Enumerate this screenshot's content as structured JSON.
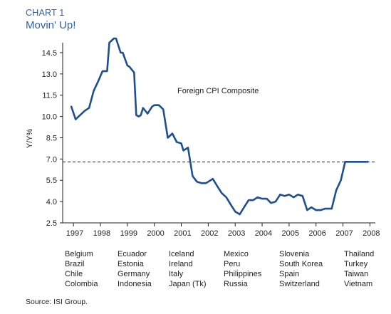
{
  "header": {
    "label": "CHART 1",
    "title": "Movin' Up!"
  },
  "source": "Source: ISI Group.",
  "colors": {
    "title": "#2f62a6",
    "series": "#1f4f8f",
    "reference_line": "#222222"
  },
  "chart_data": {
    "type": "line",
    "title": "",
    "annotation": "Foreign CPI Composite",
    "ylabel": "Y/Y%",
    "xlabel": "",
    "ylim": [
      2.5,
      15.0
    ],
    "xlim": [
      1996.6,
      2008.2
    ],
    "yticks": [
      "2.5",
      "4.0",
      "5.5",
      "7.0",
      "8.5",
      "10.0",
      "11.5",
      "13.0",
      "14.5"
    ],
    "xticks": [
      "1997",
      "1998",
      "1999",
      "2000",
      "2001",
      "2002",
      "2003",
      "2004",
      "2005",
      "2006",
      "2007",
      "2008"
    ],
    "reference_line": {
      "y": 6.8,
      "style": "dashed"
    },
    "grid": false,
    "series": [
      {
        "x": [
          1996.92,
          1997.08,
          1997.25,
          1997.42,
          1997.58,
          1997.75,
          1997.92,
          1998.08,
          1998.25,
          1998.33,
          1998.5,
          1998.58,
          1998.75,
          1998.83,
          1999.0,
          1999.08,
          1999.25,
          1999.33,
          1999.42,
          1999.5,
          1999.58,
          1999.75,
          1999.92,
          2000.0,
          2000.17,
          2000.33,
          2000.5,
          2000.67,
          2000.83,
          2001.0,
          2001.08,
          2001.25,
          2001.42,
          2001.58,
          2001.75,
          2001.92,
          2002.17,
          2002.33,
          2002.5,
          2002.67,
          2002.83,
          2003.0,
          2003.17,
          2003.33,
          2003.5,
          2003.67,
          2003.83,
          2004.0,
          2004.17,
          2004.33,
          2004.5,
          2004.67,
          2004.83,
          2005.0,
          2005.17,
          2005.33,
          2005.5,
          2005.67,
          2005.83,
          2006.0,
          2006.17,
          2006.33,
          2006.58,
          2006.75,
          2006.92,
          2007.08,
          2007.25,
          2007.42,
          2007.58,
          2007.75,
          2007.92,
          2008.08
        ],
        "y": [
          10.7,
          9.8,
          10.1,
          10.4,
          10.6,
          11.8,
          12.5,
          13.2,
          13.2,
          15.2,
          15.5,
          15.5,
          14.5,
          14.5,
          13.6,
          13.5,
          13.1,
          10.1,
          10.0,
          10.1,
          10.6,
          10.2,
          10.7,
          10.8,
          10.8,
          10.5,
          8.5,
          8.8,
          8.2,
          8.1,
          7.6,
          7.8,
          5.8,
          5.4,
          5.3,
          5.3,
          5.6,
          5.1,
          4.6,
          4.3,
          3.8,
          3.3,
          3.1,
          3.6,
          4.1,
          4.1,
          4.3,
          4.2,
          4.2,
          3.9,
          4.0,
          4.5,
          4.4,
          4.5,
          4.3,
          4.5,
          4.4,
          3.4,
          3.6,
          3.4,
          3.4,
          3.5,
          3.5,
          4.8,
          5.5,
          6.8,
          6.8,
          6.8,
          6.8,
          6.8,
          6.8,
          6.8
        ]
      }
    ]
  },
  "country_groups": [
    [
      "Belgium",
      "Brazil",
      "Chile",
      "Colombia"
    ],
    [
      "Ecuador",
      "Estonia",
      "Germany",
      "Indonesia"
    ],
    [
      "Iceland",
      "Ireland",
      "Italy",
      "Japan (Tk)"
    ],
    [
      "Mexico",
      "Peru",
      "Philippines",
      "Russia"
    ],
    [
      "Slovenia",
      "South Korea",
      "Spain",
      "Switzerland"
    ],
    [
      "Thailand",
      "Turkey",
      "Taiwan",
      "Vietnam"
    ]
  ]
}
